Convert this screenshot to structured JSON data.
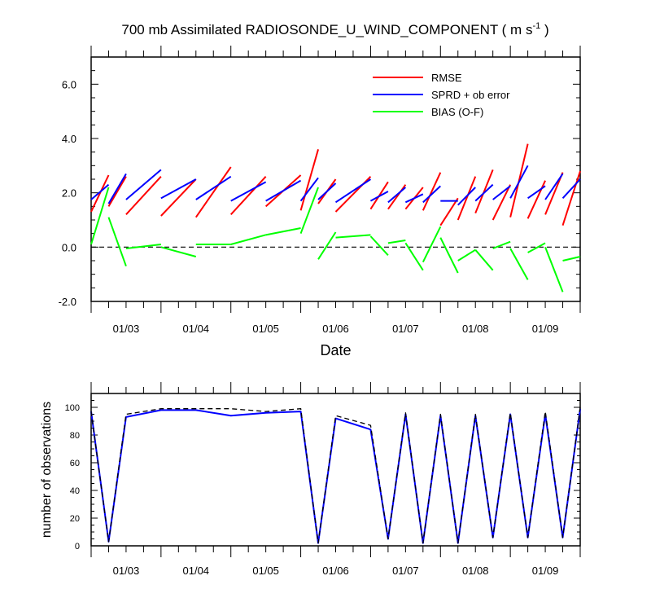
{
  "title": {
    "main": "700 mb Assimilated RADIOSONDE_U_WIND_COMPONENT ( m s",
    "sup": "-1",
    "close": " )"
  },
  "colors": {
    "rmse": "#ff0000",
    "sprd": "#0000ff",
    "bias": "#00ff00",
    "obs_assimilated": "#0000ff",
    "obs_possible": "#000000"
  },
  "chart_data": [
    {
      "type": "line",
      "title": "700 mb Assimilated RADIOSONDE_U_WIND_COMPONENT ( m s-1 )",
      "xlabel": "Date",
      "ylabel": "",
      "xlim": [
        "01/02 12",
        "01/09 12"
      ],
      "ylim": [
        -2.0,
        7.0
      ],
      "yticks": [
        -2.0,
        0.0,
        2.0,
        4.0,
        6.0
      ],
      "yticklabels": [
        "-2.0",
        "0.0",
        "2.0",
        "4.0",
        "6.0"
      ],
      "xticklabels": [
        "01/03",
        "01/04",
        "01/05",
        "01/06",
        "01/07",
        "01/08",
        "01/09"
      ],
      "legend": "top-right",
      "reference_line": 0.0,
      "x": [
        "01/02 12",
        "01/02 18",
        "01/03 00",
        "01/03 12",
        "01/04 00",
        "01/04 12",
        "01/05 00",
        "01/05 12",
        "01/05 18",
        "01/06 00",
        "01/06 12",
        "01/06 18",
        "01/07 00",
        "01/07 06",
        "01/07 12",
        "01/07 18",
        "01/08 00",
        "01/08 06",
        "01/08 12",
        "01/08 18",
        "01/09 00",
        "01/09 06",
        "01/09 12"
      ],
      "series": [
        {
          "name": "RMSE",
          "values": [
            1.3,
            2.65,
            1.2,
            1.15,
            1.1,
            1.2,
            1.5,
            1.35,
            3.6,
            1.3,
            1.4,
            1.4,
            1.4,
            1.35,
            0.8,
            1.0,
            1.25,
            1.0,
            1.1,
            1.05,
            1.2,
            0.8,
            2.8
          ],
          "segments": [
            [
              [
                0,
                1.3
              ],
              [
                1,
                2.65
              ]
            ],
            [
              [
                1,
                1.5
              ],
              [
                2,
                2.6
              ]
            ],
            [
              [
                2,
                1.2
              ],
              [
                3,
                2.6
              ]
            ],
            [
              [
                3,
                1.15
              ],
              [
                4,
                2.5
              ]
            ],
            [
              [
                4,
                1.1
              ],
              [
                5,
                2.95
              ]
            ],
            [
              [
                5,
                1.2
              ],
              [
                6,
                2.6
              ]
            ],
            [
              [
                6,
                1.5
              ],
              [
                7,
                2.65
              ]
            ],
            [
              [
                7,
                1.35
              ],
              [
                8,
                3.6
              ]
            ],
            [
              [
                8,
                1.6
              ],
              [
                9,
                2.5
              ]
            ],
            [
              [
                9,
                1.3
              ],
              [
                10,
                2.6
              ]
            ],
            [
              [
                10,
                1.4
              ],
              [
                11,
                2.4
              ]
            ],
            [
              [
                11,
                1.4
              ],
              [
                12,
                2.3
              ]
            ],
            [
              [
                12,
                1.4
              ],
              [
                13,
                2.2
              ]
            ],
            [
              [
                13,
                1.35
              ],
              [
                14,
                2.75
              ]
            ],
            [
              [
                14,
                0.8
              ],
              [
                15,
                1.8
              ]
            ],
            [
              [
                15,
                1.0
              ],
              [
                16,
                2.6
              ]
            ],
            [
              [
                16,
                1.25
              ],
              [
                17,
                2.85
              ]
            ],
            [
              [
                17,
                1.0
              ],
              [
                18,
                2.3
              ]
            ],
            [
              [
                18,
                1.1
              ],
              [
                19,
                3.8
              ]
            ],
            [
              [
                19,
                1.05
              ],
              [
                20,
                2.45
              ]
            ],
            [
              [
                20,
                1.2
              ],
              [
                21,
                2.75
              ]
            ],
            [
              [
                21,
                0.8
              ],
              [
                22,
                2.8
              ]
            ]
          ]
        },
        {
          "name": "SPRD + ob error",
          "values": [
            1.75,
            2.3,
            1.75,
            1.8,
            1.75,
            1.7,
            1.7,
            1.7,
            2.55,
            1.65,
            1.7,
            1.65,
            1.65,
            1.65,
            1.7,
            1.55,
            1.7,
            1.75,
            1.8,
            1.8,
            1.75,
            1.8,
            2.5
          ],
          "segments": [
            [
              [
                0,
                1.75
              ],
              [
                1,
                2.3
              ]
            ],
            [
              [
                1,
                1.6
              ],
              [
                2,
                2.7
              ]
            ],
            [
              [
                2,
                1.75
              ],
              [
                3,
                2.85
              ]
            ],
            [
              [
                3,
                1.8
              ],
              [
                4,
                2.5
              ]
            ],
            [
              [
                4,
                1.75
              ],
              [
                5,
                2.6
              ]
            ],
            [
              [
                5,
                1.7
              ],
              [
                6,
                2.4
              ]
            ],
            [
              [
                6,
                1.7
              ],
              [
                7,
                2.45
              ]
            ],
            [
              [
                7,
                1.7
              ],
              [
                8,
                2.55
              ]
            ],
            [
              [
                8,
                1.75
              ],
              [
                9,
                2.35
              ]
            ],
            [
              [
                9,
                1.65
              ],
              [
                10,
                2.5
              ]
            ],
            [
              [
                10,
                1.7
              ],
              [
                11,
                2.05
              ]
            ],
            [
              [
                11,
                1.65
              ],
              [
                12,
                2.2
              ]
            ],
            [
              [
                12,
                1.65
              ],
              [
                13,
                1.95
              ]
            ],
            [
              [
                13,
                1.65
              ],
              [
                14,
                2.25
              ]
            ],
            [
              [
                14,
                1.7
              ],
              [
                15,
                1.7
              ]
            ],
            [
              [
                15,
                1.55
              ],
              [
                16,
                2.2
              ]
            ],
            [
              [
                16,
                1.7
              ],
              [
                17,
                2.3
              ]
            ],
            [
              [
                17,
                1.75
              ],
              [
                18,
                2.25
              ]
            ],
            [
              [
                18,
                1.8
              ],
              [
                19,
                3.0
              ]
            ],
            [
              [
                19,
                1.8
              ],
              [
                20,
                2.25
              ]
            ],
            [
              [
                20,
                1.75
              ],
              [
                21,
                2.7
              ]
            ],
            [
              [
                21,
                1.8
              ],
              [
                22,
                2.5
              ]
            ]
          ]
        },
        {
          "name": "BIAS (O-F)",
          "values": [
            0.1,
            2.2,
            -0.7,
            0.1,
            -0.35,
            0.1,
            0.45,
            0.7,
            2.2,
            0.55,
            0.4,
            0.15,
            0.15,
            0.75,
            -0.9,
            -0.1,
            -0.85,
            -0.05,
            -1.2,
            0.15,
            -1.65,
            -0.5,
            -0.35
          ],
          "segments": [
            [
              [
                0,
                0.1
              ],
              [
                1,
                2.2
              ]
            ],
            [
              [
                1,
                1.1
              ],
              [
                2,
                -0.7
              ]
            ],
            [
              [
                2,
                -0.05
              ],
              [
                3,
                0.1
              ]
            ],
            [
              [
                3,
                0.0
              ],
              [
                4,
                -0.35
              ]
            ],
            [
              [
                4,
                0.1
              ],
              [
                5,
                0.1
              ]
            ],
            [
              [
                5,
                0.1
              ],
              [
                6,
                0.45
              ]
            ],
            [
              [
                6,
                0.45
              ],
              [
                7,
                0.7
              ]
            ],
            [
              [
                7,
                0.5
              ],
              [
                8,
                2.2
              ]
            ],
            [
              [
                8,
                -0.45
              ],
              [
                9,
                0.55
              ]
            ],
            [
              [
                9,
                0.35
              ],
              [
                10,
                0.45
              ]
            ],
            [
              [
                10,
                0.4
              ],
              [
                11,
                -0.3
              ]
            ],
            [
              [
                11,
                0.15
              ],
              [
                12,
                0.25
              ]
            ],
            [
              [
                12,
                0.15
              ],
              [
                13,
                -0.85
              ]
            ],
            [
              [
                13,
                -0.55
              ],
              [
                14,
                0.75
              ]
            ],
            [
              [
                14,
                0.35
              ],
              [
                15,
                -0.95
              ]
            ],
            [
              [
                15,
                -0.5
              ],
              [
                16,
                -0.1
              ]
            ],
            [
              [
                16,
                -0.1
              ],
              [
                17,
                -0.85
              ]
            ],
            [
              [
                17,
                -0.05
              ],
              [
                18,
                0.2
              ]
            ],
            [
              [
                18,
                -0.05
              ],
              [
                19,
                -1.2
              ]
            ],
            [
              [
                19,
                -0.2
              ],
              [
                20,
                0.15
              ]
            ],
            [
              [
                20,
                0.0
              ],
              [
                21,
                -1.65
              ]
            ],
            [
              [
                21,
                -0.5
              ],
              [
                22,
                -0.35
              ]
            ]
          ]
        }
      ]
    },
    {
      "type": "line",
      "title": "",
      "xlabel": "",
      "ylabel": "number of observations",
      "xlim": [
        "01/02 12",
        "01/09 12"
      ],
      "ylim": [
        0,
        110
      ],
      "yticks": [
        0,
        20,
        40,
        60,
        80,
        100
      ],
      "yticklabels": [
        "0",
        "20",
        "40",
        "60",
        "80",
        "100"
      ],
      "xticklabels": [
        "01/03",
        "01/04",
        "01/05",
        "01/06",
        "01/07",
        "01/08",
        "01/09"
      ],
      "x": [
        "01/02 12",
        "01/02 18",
        "01/03 00",
        "01/03 12",
        "01/04 00",
        "01/04 12",
        "01/05 00",
        "01/05 12",
        "01/05 18",
        "01/06 00",
        "01/06 12",
        "01/06 18",
        "01/07 00",
        "01/07 06",
        "01/07 12",
        "01/07 18",
        "01/08 00",
        "01/08 06",
        "01/08 12",
        "01/08 18",
        "01/09 00",
        "01/09 06",
        "01/09 12"
      ],
      "series": [
        {
          "style": "solid",
          "values": [
            97,
            3,
            93,
            98,
            98,
            94,
            96,
            97,
            2,
            92,
            84,
            5,
            95,
            2,
            94,
            2,
            94,
            6,
            95,
            6,
            95,
            6,
            99
          ]
        },
        {
          "style": "dashed",
          "values": [
            97,
            3,
            95,
            99,
            99,
            99,
            97,
            99,
            2,
            94,
            87,
            5,
            96,
            2,
            95,
            2,
            95,
            6,
            96,
            6,
            97,
            6,
            100
          ]
        }
      ]
    }
  ]
}
